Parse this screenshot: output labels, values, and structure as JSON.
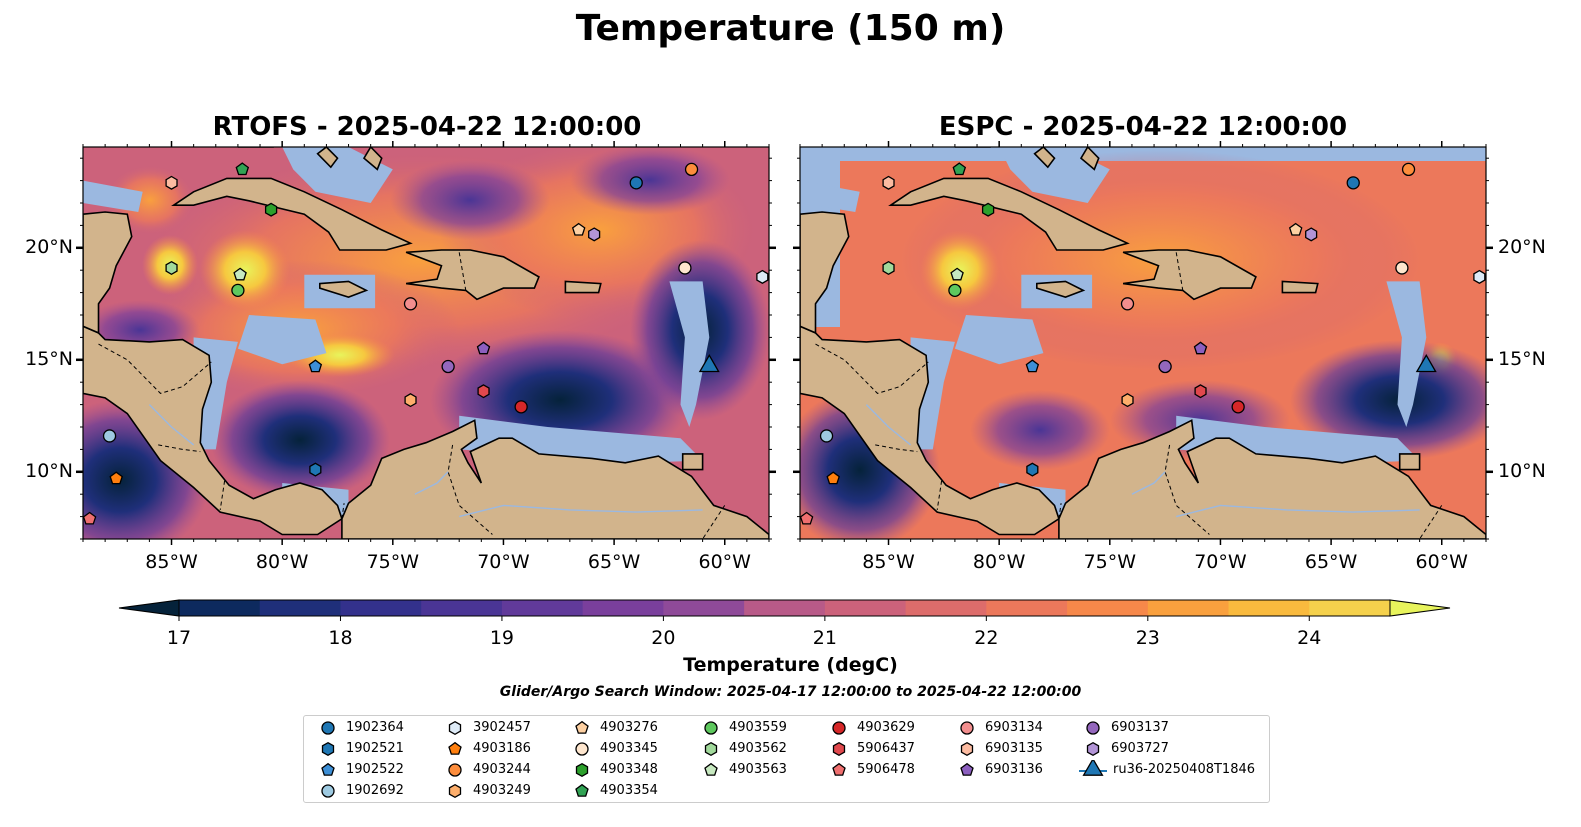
{
  "figure": {
    "title": "Temperature (150 m)"
  },
  "panels": [
    {
      "title": "RTOFS - 2025-04-22 12:00:00"
    },
    {
      "title": "ESPC - 2025-04-22 12:00:00"
    }
  ],
  "axes": {
    "x_ticks": [
      "85°W",
      "80°W",
      "75°W",
      "70°W",
      "65°W",
      "60°W"
    ],
    "x_values": [
      -85,
      -80,
      -75,
      -70,
      -65,
      -60
    ],
    "y_ticks": [
      "20°N",
      "15°N",
      "10°N"
    ],
    "y_values": [
      20,
      15,
      10
    ],
    "lon_range": [
      -89,
      -58
    ],
    "lat_range": [
      7,
      24.5
    ]
  },
  "colorbar": {
    "label": "Temperature (degC)",
    "ticks": [
      "17",
      "18",
      "19",
      "20",
      "21",
      "22",
      "23",
      "24"
    ],
    "tick_values": [
      17,
      18,
      19,
      20,
      21,
      22,
      23,
      24
    ],
    "range": [
      17,
      24.5
    ],
    "step": 0.5,
    "extend": "both",
    "colors": [
      "#05223a",
      "#0d2a5e",
      "#1f2f7a",
      "#33318c",
      "#4a3595",
      "#613a9a",
      "#7a3f9c",
      "#8f4a99",
      "#a35193",
      "#b85a88",
      "#cc627b",
      "#dd6c6b",
      "#ec785b",
      "#f6884a",
      "#f9a03e",
      "#f9ba3e",
      "#f5d14c",
      "#e8f45c"
    ]
  },
  "search_window": "Glider/Argo Search Window: 2025-04-17 12:00:00 to 2025-04-22 12:00:00",
  "colors": {
    "land": "#d2b48c",
    "shelf": "#9bb8e0",
    "deep_water": "#05223a"
  },
  "legend": [
    {
      "label": "1902364",
      "marker": "circle",
      "color": "#1f77b4"
    },
    {
      "label": "1902521",
      "marker": "hexagon",
      "color": "#1f77b4"
    },
    {
      "label": "1902522",
      "marker": "pentagon",
      "color": "#3d8fd6"
    },
    {
      "label": "1902692",
      "marker": "circle",
      "color": "#9ecae1"
    },
    {
      "label": "3902457",
      "marker": "hexagon",
      "color": "#deebf7"
    },
    {
      "label": "4903186",
      "marker": "pentagon",
      "color": "#ff7f0e"
    },
    {
      "label": "4903244",
      "marker": "circle",
      "color": "#fd8d3c"
    },
    {
      "label": "4903249",
      "marker": "hexagon",
      "color": "#fdae6b"
    },
    {
      "label": "4903276",
      "marker": "pentagon",
      "color": "#fdd0a2"
    },
    {
      "label": "4903345",
      "marker": "circle",
      "color": "#fee6ce"
    },
    {
      "label": "4903348",
      "marker": "hexagon",
      "color": "#2ca02c"
    },
    {
      "label": "4903354",
      "marker": "pentagon",
      "color": "#31a354"
    },
    {
      "label": "4903559",
      "marker": "circle",
      "color": "#5ec85e"
    },
    {
      "label": "4903562",
      "marker": "hexagon",
      "color": "#a1d99b"
    },
    {
      "label": "4903563",
      "marker": "pentagon",
      "color": "#c7e9c0"
    },
    {
      "label": "4903629",
      "marker": "circle",
      "color": "#d62728"
    },
    {
      "label": "5906437",
      "marker": "hexagon",
      "color": "#e0484d"
    },
    {
      "label": "5906478",
      "marker": "pentagon",
      "color": "#ef6f6f"
    },
    {
      "label": "6903134",
      "marker": "circle",
      "color": "#f28e8e"
    },
    {
      "label": "6903135",
      "marker": "hexagon",
      "color": "#fcbba1"
    },
    {
      "label": "6903136",
      "marker": "pentagon",
      "color": "#8c5fbf"
    },
    {
      "label": "6903137",
      "marker": "circle",
      "color": "#9467bd"
    },
    {
      "label": "6903727",
      "marker": "hexagon",
      "color": "#b294d6"
    },
    {
      "label": "ru36-20250408T1846",
      "marker": "triangle-line",
      "color": "#1f77b4"
    }
  ],
  "floats": [
    {
      "lon": -64.0,
      "lat": 22.9,
      "legend": 0
    },
    {
      "lon": -78.5,
      "lat": 10.1,
      "legend": 1
    },
    {
      "lon": -78.5,
      "lat": 14.7,
      "legend": 2
    },
    {
      "lon": -87.8,
      "lat": 11.6,
      "legend": 3
    },
    {
      "lon": -58.3,
      "lat": 18.7,
      "legend": 4
    },
    {
      "lon": -87.5,
      "lat": 9.7,
      "legend": 5
    },
    {
      "lon": -61.5,
      "lat": 23.5,
      "legend": 6
    },
    {
      "lon": -74.2,
      "lat": 13.2,
      "legend": 7
    },
    {
      "lon": -66.6,
      "lat": 20.8,
      "legend": 8
    },
    {
      "lon": -61.8,
      "lat": 19.1,
      "legend": 9
    },
    {
      "lon": -80.5,
      "lat": 21.7,
      "legend": 10
    },
    {
      "lon": -81.8,
      "lat": 23.5,
      "legend": 11
    },
    {
      "lon": -82.0,
      "lat": 18.1,
      "legend": 12
    },
    {
      "lon": -85.0,
      "lat": 19.1,
      "legend": 13
    },
    {
      "lon": -81.9,
      "lat": 18.8,
      "legend": 14
    },
    {
      "lon": -69.2,
      "lat": 12.9,
      "legend": 15
    },
    {
      "lon": -70.9,
      "lat": 13.6,
      "legend": 16
    },
    {
      "lon": -88.7,
      "lat": 7.9,
      "legend": 17
    },
    {
      "lon": -74.2,
      "lat": 17.5,
      "legend": 18
    },
    {
      "lon": -85.0,
      "lat": 22.9,
      "legend": 19
    },
    {
      "lon": -70.9,
      "lat": 15.5,
      "legend": 20
    },
    {
      "lon": -72.5,
      "lat": 14.7,
      "legend": 21
    },
    {
      "lon": -65.9,
      "lat": 20.6,
      "legend": 22
    },
    {
      "lon": -60.7,
      "lat": 14.8,
      "legend": 23
    }
  ]
}
